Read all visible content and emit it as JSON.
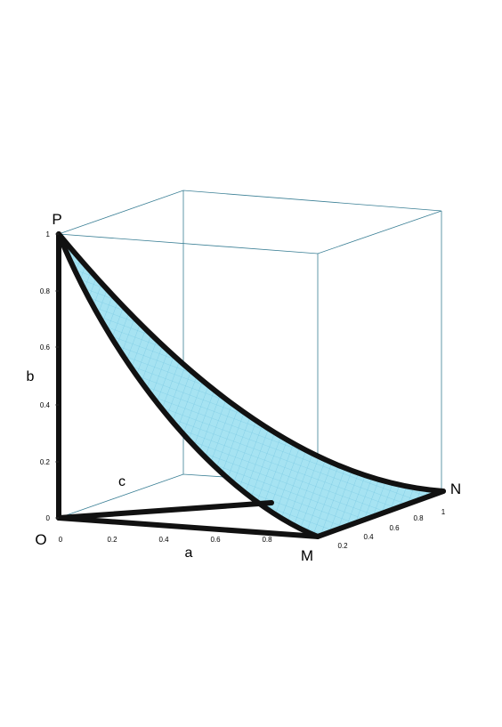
{
  "points": {
    "P": "P",
    "O": "O",
    "M": "M",
    "N": "N"
  },
  "axes": {
    "a": {
      "label": "a",
      "ticks": [
        "0",
        "0.2",
        "0.4",
        "0.6",
        "0.8"
      ]
    },
    "b": {
      "label": "b",
      "ticks": [
        "0",
        "0.2",
        "0.4",
        "0.6",
        "0.8",
        "1"
      ]
    },
    "c": {
      "label": "c",
      "ticks": [
        "0.2",
        "0.4",
        "0.6",
        "0.8",
        "1"
      ]
    }
  }
}
